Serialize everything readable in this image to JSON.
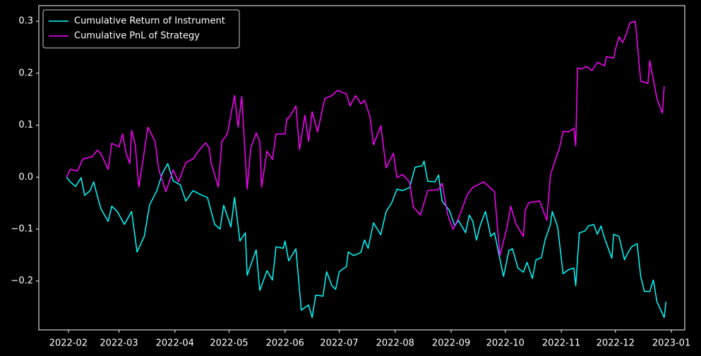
{
  "chart_data": {
    "type": "line",
    "legend": "upper left",
    "grid": false,
    "background": "#000000",
    "xlim": [
      14.6,
      372.4
    ],
    "xticks": [
      {
        "value": 31,
        "label": "2022-02"
      },
      {
        "value": 59,
        "label": "2022-03"
      },
      {
        "value": 90,
        "label": "2022-04"
      },
      {
        "value": 120,
        "label": "2022-05"
      },
      {
        "value": 151,
        "label": "2022-06"
      },
      {
        "value": 181,
        "label": "2022-07"
      },
      {
        "value": 212,
        "label": "2022-08"
      },
      {
        "value": 243,
        "label": "2022-09"
      },
      {
        "value": 273,
        "label": "2022-10"
      },
      {
        "value": 304,
        "label": "2022-11"
      },
      {
        "value": 334,
        "label": "2022-12"
      },
      {
        "value": 365,
        "label": "2023-01"
      }
    ],
    "ylim": [
      -0.294,
      0.33
    ],
    "yticks": [
      {
        "value": -0.2,
        "label": "−0.2"
      },
      {
        "value": -0.1,
        "label": "−0.1"
      },
      {
        "value": 0,
        "label": "0.0"
      },
      0.1,
      0.2,
      0.3
    ],
    "series": [
      {
        "name": "Cumulative Return of Instrument",
        "color": "#00ffff",
        "x": [
          30,
          32,
          35,
          38,
          40,
          43,
          45,
          46,
          49,
          53,
          55,
          58,
          62,
          66,
          69,
          73,
          76,
          80,
          83,
          86,
          89,
          93,
          96,
          100,
          105,
          108,
          112,
          115,
          117,
          121,
          123,
          126,
          129,
          130,
          133,
          135,
          137,
          141,
          144,
          146,
          150,
          151,
          153,
          157,
          160,
          164,
          166,
          168,
          172,
          174,
          177,
          179,
          181,
          185,
          186,
          189,
          193,
          195,
          197,
          200,
          204,
          207,
          210,
          213,
          216,
          220,
          223,
          227,
          228,
          230,
          234,
          236,
          238,
          242,
          245,
          247,
          251,
          253,
          255,
          257,
          259,
          262,
          265,
          267,
          272,
          275,
          277,
          280,
          283,
          285,
          288,
          290,
          293,
          295,
          298,
          299,
          302,
          305,
          308,
          311,
          312,
          314,
          317,
          319,
          322,
          324,
          326,
          328,
          332,
          333,
          336,
          339,
          341,
          343,
          346,
          348,
          350,
          353,
          355,
          357,
          361,
          362
        ],
        "values": [
          0,
          -0.009,
          -0.018,
          -0.001,
          -0.035,
          -0.026,
          -0.009,
          -0.023,
          -0.061,
          -0.085,
          -0.056,
          -0.066,
          -0.091,
          -0.066,
          -0.144,
          -0.114,
          -0.053,
          -0.026,
          0.007,
          0.026,
          -0.007,
          -0.015,
          -0.046,
          -0.026,
          -0.035,
          -0.039,
          -0.091,
          -0.1,
          -0.054,
          -0.096,
          -0.039,
          -0.123,
          -0.107,
          -0.189,
          -0.159,
          -0.14,
          -0.218,
          -0.18,
          -0.198,
          -0.134,
          -0.137,
          -0.123,
          -0.161,
          -0.138,
          -0.256,
          -0.246,
          -0.27,
          -0.227,
          -0.229,
          -0.182,
          -0.209,
          -0.216,
          -0.182,
          -0.172,
          -0.144,
          -0.151,
          -0.145,
          -0.121,
          -0.137,
          -0.088,
          -0.111,
          -0.066,
          -0.05,
          -0.023,
          -0.026,
          -0.02,
          0.019,
          0.022,
          0.031,
          -0.008,
          -0.009,
          0.004,
          -0.046,
          -0.064,
          -0.094,
          -0.083,
          -0.107,
          -0.073,
          -0.085,
          -0.121,
          -0.094,
          -0.066,
          -0.114,
          -0.107,
          -0.191,
          -0.141,
          -0.138,
          -0.175,
          -0.183,
          -0.164,
          -0.195,
          -0.159,
          -0.155,
          -0.121,
          -0.091,
          -0.066,
          -0.096,
          -0.186,
          -0.178,
          -0.175,
          -0.209,
          -0.107,
          -0.104,
          -0.094,
          -0.091,
          -0.11,
          -0.094,
          -0.118,
          -0.156,
          -0.11,
          -0.114,
          -0.159,
          -0.145,
          -0.134,
          -0.128,
          -0.191,
          -0.22,
          -0.22,
          -0.198,
          -0.24,
          -0.27,
          -0.24
        ]
      },
      {
        "name": "Cumulative PnL of Strategy",
        "color": "#ff00ff",
        "x": [
          30,
          32,
          36,
          39,
          44,
          47,
          49,
          53,
          55,
          59,
          61,
          63,
          65,
          66,
          68,
          70,
          73,
          75,
          79,
          81,
          85,
          89,
          92,
          96,
          100,
          103,
          107,
          109,
          110,
          114,
          116,
          119,
          123,
          125,
          127,
          130,
          132,
          135,
          137,
          138,
          141,
          144,
          146,
          151,
          152,
          153,
          157,
          159,
          162,
          164,
          166,
          169,
          173,
          177,
          180,
          185,
          187,
          190,
          193,
          195,
          198,
          200,
          204,
          207,
          211,
          213,
          216,
          220,
          222,
          226,
          230,
          236,
          238,
          241,
          244,
          247,
          252,
          255,
          261,
          267,
          270,
          274,
          276,
          279,
          283,
          284,
          286,
          292,
          296,
          298,
          300,
          303,
          305,
          308,
          311,
          312,
          313,
          315,
          318,
          321,
          324,
          328,
          329,
          333,
          334,
          336,
          338,
          340,
          342,
          345,
          348,
          352,
          353,
          357,
          360,
          361
        ],
        "values": [
          0,
          0.015,
          0.012,
          0.035,
          0.039,
          0.052,
          0.045,
          0.015,
          0.065,
          0.058,
          0.083,
          0.045,
          0.026,
          0.09,
          0.062,
          -0.019,
          0.049,
          0.096,
          0.069,
          0.015,
          -0.028,
          0.014,
          -0.009,
          0.028,
          0.035,
          0.05,
          0.066,
          0.056,
          0.028,
          -0.019,
          0.069,
          0.083,
          0.157,
          0.096,
          0.155,
          -0.023,
          0.056,
          0.085,
          0.069,
          -0.019,
          0.05,
          0.034,
          0.083,
          0.083,
          0.113,
          0.113,
          0.137,
          0.053,
          0.119,
          0.069,
          0.126,
          0.087,
          0.151,
          0.157,
          0.167,
          0.16,
          0.137,
          0.157,
          0.141,
          0.148,
          0.117,
          0.062,
          0.099,
          0.018,
          0.046,
          -0.001,
          0.005,
          -0.009,
          -0.057,
          -0.073,
          -0.026,
          -0.024,
          -0.012,
          -0.071,
          -0.1,
          -0.08,
          -0.033,
          -0.02,
          -0.009,
          -0.028,
          -0.151,
          -0.096,
          -0.056,
          -0.091,
          -0.114,
          -0.064,
          -0.049,
          -0.046,
          -0.083,
          0.004,
          0.026,
          0.056,
          0.088,
          0.087,
          0.094,
          0.06,
          0.21,
          0.208,
          0.213,
          0.205,
          0.221,
          0.214,
          0.232,
          0.229,
          0.246,
          0.27,
          0.259,
          0.275,
          0.297,
          0.3,
          0.185,
          0.18,
          0.224,
          0.151,
          0.123,
          0.175
        ]
      }
    ]
  }
}
